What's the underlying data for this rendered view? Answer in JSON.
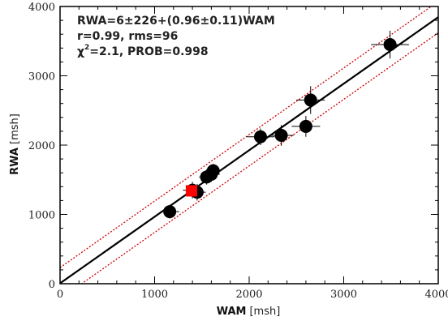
{
  "chart_data": {
    "type": "scatter",
    "xlabel": "WAM",
    "xlabel_unit": "[msh]",
    "ylabel": "RWA",
    "ylabel_unit": "[msh]",
    "xlim": [
      0,
      4000
    ],
    "ylim": [
      0,
      4000
    ],
    "xticks": [
      "0",
      "1000",
      "2000",
      "3000",
      "4000"
    ],
    "yticks": [
      "0",
      "1000",
      "2000",
      "3000",
      "4000"
    ],
    "grid": false,
    "annotations": {
      "line1": "RWA=6±226+(0.96±0.11)WAM",
      "line2": "r=0.99, rms=96",
      "line3_chi": "χ",
      "line3_exp": "2",
      "line3_rest": "=2.1, PROB=0.998"
    },
    "fit": {
      "intercept": 6,
      "slope": 0.96,
      "intercept_err": 226,
      "slope_err": 0.11,
      "color": "#000000"
    },
    "bounds": {
      "color": "#cc0000",
      "style": "dotted"
    },
    "points": [
      {
        "x": 1160,
        "y": 1040,
        "xerr": 100,
        "yerr": 100,
        "color": "#000000"
      },
      {
        "x": 1450,
        "y": 1320,
        "xerr": 90,
        "yerr": 120,
        "color": "#000000"
      },
      {
        "x": 1400,
        "y": 1350,
        "xerr": 100,
        "yerr": 120,
        "color": "#000000"
      },
      {
        "x": 1550,
        "y": 1540,
        "xerr": 80,
        "yerr": 110,
        "color": "#000000"
      },
      {
        "x": 1600,
        "y": 1580,
        "xerr": 90,
        "yerr": 110,
        "color": "#000000"
      },
      {
        "x": 1620,
        "y": 1630,
        "xerr": 80,
        "yerr": 100,
        "color": "#000000"
      },
      {
        "x": 2120,
        "y": 2120,
        "xerr": 150,
        "yerr": 120,
        "color": "#000000"
      },
      {
        "x": 2340,
        "y": 2140,
        "xerr": 130,
        "yerr": 150,
        "color": "#000000"
      },
      {
        "x": 2600,
        "y": 2270,
        "xerr": 150,
        "yerr": 150,
        "color": "#000000"
      },
      {
        "x": 2650,
        "y": 2650,
        "xerr": 150,
        "yerr": 200,
        "color": "#000000"
      },
      {
        "x": 3490,
        "y": 3450,
        "xerr": 200,
        "yerr": 200,
        "color": "#000000"
      },
      {
        "x": 1390,
        "y": 1340,
        "xerr": 60,
        "yerr": 60,
        "color": "#ff0000",
        "marker": "square"
      }
    ]
  }
}
